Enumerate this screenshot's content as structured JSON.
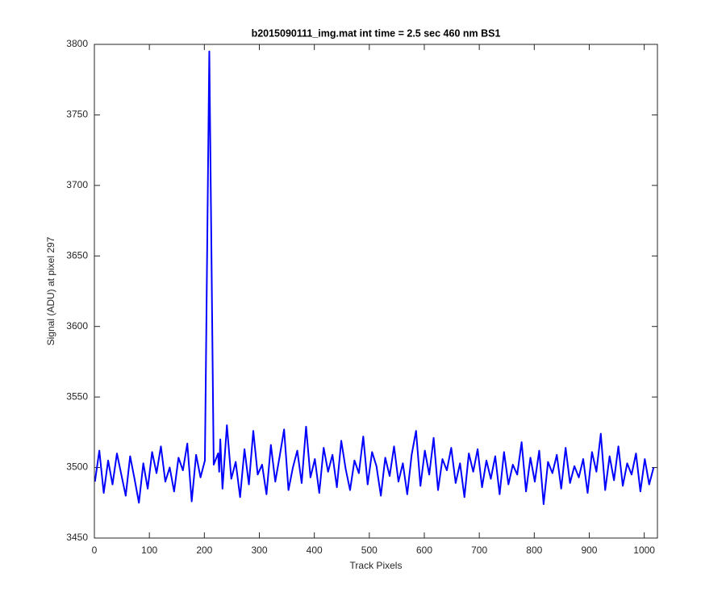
{
  "chart_data": {
    "type": "line",
    "title": "b2015090111_img.mat int time = 2.5 sec  460 nm BS1",
    "x_label": "Track Pixels",
    "y_label": "Signal (ADU) at pixel 297",
    "xlim": [
      0,
      1024
    ],
    "ylim": [
      3450,
      3800
    ],
    "xticks": [
      0,
      100,
      200,
      300,
      400,
      500,
      600,
      700,
      800,
      900,
      1000
    ],
    "yticks": [
      3450,
      3500,
      3550,
      3600,
      3650,
      3700,
      3750,
      3800
    ],
    "grid": false,
    "x": [
      1,
      9,
      17,
      25,
      33,
      41,
      49,
      57,
      65,
      73,
      81,
      89,
      97,
      105,
      113,
      121,
      129,
      137,
      145,
      153,
      161,
      169,
      177,
      185,
      193,
      201,
      209,
      217,
      225,
      227,
      229,
      233,
      241,
      249,
      257,
      265,
      273,
      281,
      289,
      297,
      305,
      313,
      321,
      329,
      337,
      345,
      353,
      361,
      369,
      377,
      385,
      393,
      401,
      409,
      417,
      425,
      433,
      441,
      449,
      457,
      465,
      473,
      481,
      489,
      497,
      505,
      513,
      521,
      529,
      537,
      545,
      553,
      561,
      569,
      577,
      585,
      593,
      601,
      609,
      617,
      625,
      633,
      641,
      649,
      657,
      665,
      673,
      681,
      689,
      697,
      705,
      713,
      721,
      729,
      737,
      745,
      753,
      761,
      769,
      777,
      785,
      793,
      801,
      809,
      817,
      825,
      833,
      841,
      849,
      857,
      865,
      873,
      881,
      889,
      897,
      905,
      913,
      921,
      929,
      937,
      945,
      953,
      961,
      969,
      977,
      985,
      993,
      1001,
      1009,
      1017
    ],
    "series": [
      {
        "color": "#0000ff",
        "values": [
          3490,
          3512,
          3482,
          3505,
          3488,
          3510,
          3495,
          3480,
          3508,
          3492,
          3475,
          3503,
          3485,
          3511,
          3496,
          3515,
          3490,
          3500,
          3483,
          3507,
          3498,
          3517,
          3476,
          3509,
          3493,
          3505,
          3795,
          3502,
          3510,
          3497,
          3520,
          3485,
          3530,
          3492,
          3504,
          3479,
          3513,
          3488,
          3526,
          3495,
          3502,
          3481,
          3516,
          3490,
          3508,
          3527,
          3484,
          3500,
          3512,
          3489,
          3529,
          3493,
          3506,
          3482,
          3514,
          3497,
          3509,
          3486,
          3519,
          3499,
          3484,
          3505,
          3496,
          3522,
          3488,
          3511,
          3501,
          3480,
          3507,
          3494,
          3515,
          3490,
          3503,
          3481,
          3509,
          3526,
          3487,
          3512,
          3495,
          3521,
          3484,
          3506,
          3498,
          3514,
          3489,
          3503,
          3479,
          3510,
          3497,
          3513,
          3486,
          3505,
          3492,
          3508,
          3481,
          3511,
          3488,
          3502,
          3495,
          3518,
          3483,
          3507,
          3490,
          3512,
          3474,
          3504,
          3496,
          3509,
          3485,
          3514,
          3489,
          3501,
          3493,
          3506,
          3482,
          3511,
          3497,
          3524,
          3484,
          3508,
          3491,
          3515,
          3487,
          3503,
          3495,
          3510,
          3483,
          3506,
          3488,
          3500
        ]
      }
    ]
  }
}
